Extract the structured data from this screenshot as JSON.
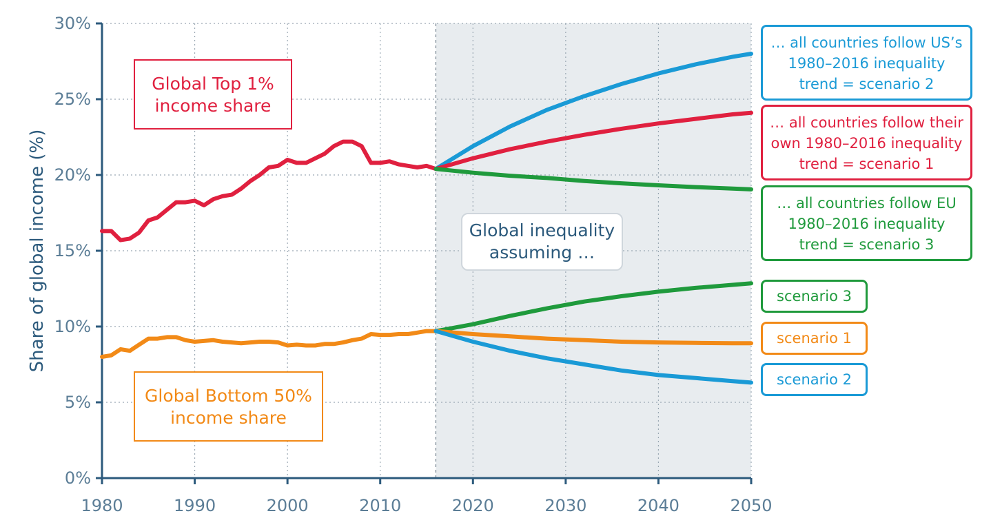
{
  "colors": {
    "top1": "#e0203f",
    "bottom50": "#f28a17",
    "scenario2": "#1a9ad6",
    "scenario3": "#1f9a3c",
    "axis": "#2c5a7c",
    "forecast_shade": "#e8ecef"
  },
  "annotations": {
    "top1_label": [
      "Global Top 1%",
      "income share"
    ],
    "bottom50_label": [
      "Global Bottom 50%",
      "income share"
    ],
    "center_label": [
      "Global inequality",
      "assuming …"
    ],
    "scenario2_box": [
      "… all countries follow US’s",
      "1980–2016 inequality",
      "trend = scenario 2"
    ],
    "scenario1_box": [
      "… all countries follow their",
      "own 1980–2016 inequality",
      "trend = scenario 1"
    ],
    "scenario3_box": [
      "… all countries follow EU",
      "1980–2016 inequality",
      "trend = scenario 3"
    ],
    "bottom_scenario3": "scenario 3",
    "bottom_scenario1": "scenario 1",
    "bottom_scenario2": "scenario 2"
  },
  "chart_data": {
    "type": "line",
    "title": "",
    "xlabel": "",
    "ylabel": "Share of global income (%)",
    "xlim": [
      1980,
      2050
    ],
    "ylim": [
      0,
      30
    ],
    "x_ticks": [
      1980,
      1990,
      2000,
      2010,
      2020,
      2030,
      2040,
      2050
    ],
    "y_ticks": [
      0,
      5,
      10,
      15,
      20,
      25,
      30
    ],
    "y_tick_labels": [
      "0%",
      "5%",
      "10%",
      "15%",
      "20%",
      "25%",
      "30%"
    ],
    "grid": true,
    "forecast_region": [
      2016,
      2050
    ],
    "series": [
      {
        "key": "top1_hist",
        "x": [
          1980,
          1981,
          1982,
          1983,
          1984,
          1985,
          1986,
          1987,
          1988,
          1989,
          1990,
          1991,
          1992,
          1993,
          1994,
          1995,
          1996,
          1997,
          1998,
          1999,
          2000,
          2001,
          2002,
          2003,
          2004,
          2005,
          2006,
          2007,
          2008,
          2009,
          2010,
          2011,
          2012,
          2013,
          2014,
          2015,
          2016
        ],
        "values": [
          16.3,
          16.3,
          15.7,
          15.8,
          16.2,
          17.0,
          17.2,
          17.7,
          18.2,
          18.2,
          18.3,
          18.0,
          18.4,
          18.6,
          18.7,
          19.1,
          19.6,
          20.0,
          20.5,
          20.6,
          21.0,
          20.8,
          20.8,
          21.1,
          21.4,
          21.9,
          22.2,
          22.2,
          21.9,
          20.8,
          20.8,
          20.9,
          20.7,
          20.6,
          20.5,
          20.6,
          20.4
        ]
      },
      {
        "key": "bottom50_hist",
        "x": [
          1980,
          1981,
          1982,
          1983,
          1984,
          1985,
          1986,
          1987,
          1988,
          1989,
          1990,
          1991,
          1992,
          1993,
          1994,
          1995,
          1996,
          1997,
          1998,
          1999,
          2000,
          2001,
          2002,
          2003,
          2004,
          2005,
          2006,
          2007,
          2008,
          2009,
          2010,
          2011,
          2012,
          2013,
          2014,
          2015,
          2016
        ],
        "values": [
          8.0,
          8.1,
          8.5,
          8.4,
          8.8,
          9.2,
          9.2,
          9.3,
          9.3,
          9.1,
          9.0,
          9.05,
          9.1,
          9.0,
          8.95,
          8.9,
          8.95,
          9.0,
          9.0,
          8.95,
          8.75,
          8.8,
          8.75,
          8.75,
          8.85,
          8.85,
          8.95,
          9.1,
          9.2,
          9.5,
          9.45,
          9.45,
          9.5,
          9.5,
          9.6,
          9.7,
          9.7
        ]
      },
      {
        "key": "top1_scenario2",
        "x": [
          2016,
          2020,
          2024,
          2028,
          2032,
          2036,
          2040,
          2044,
          2048,
          2050
        ],
        "values": [
          20.4,
          21.9,
          23.2,
          24.3,
          25.2,
          26.0,
          26.7,
          27.3,
          27.8,
          28.0
        ]
      },
      {
        "key": "top1_scenario1",
        "x": [
          2016,
          2020,
          2024,
          2028,
          2032,
          2036,
          2040,
          2044,
          2048,
          2050
        ],
        "values": [
          20.4,
          21.1,
          21.7,
          22.2,
          22.65,
          23.05,
          23.4,
          23.7,
          24.0,
          24.1
        ]
      },
      {
        "key": "top1_scenario3",
        "x": [
          2016,
          2020,
          2024,
          2028,
          2032,
          2036,
          2040,
          2044,
          2048,
          2050
        ],
        "values": [
          20.4,
          20.15,
          19.95,
          19.8,
          19.6,
          19.45,
          19.32,
          19.2,
          19.1,
          19.05
        ]
      },
      {
        "key": "bottom50_scenario3",
        "x": [
          2016,
          2020,
          2024,
          2028,
          2032,
          2036,
          2040,
          2044,
          2048,
          2050
        ],
        "values": [
          9.7,
          10.15,
          10.7,
          11.2,
          11.65,
          12.0,
          12.3,
          12.55,
          12.75,
          12.85
        ]
      },
      {
        "key": "bottom50_scenario1",
        "x": [
          2016,
          2020,
          2024,
          2028,
          2032,
          2036,
          2040,
          2044,
          2048,
          2050
        ],
        "values": [
          9.7,
          9.5,
          9.35,
          9.2,
          9.1,
          9.0,
          8.95,
          8.92,
          8.9,
          8.9
        ]
      },
      {
        "key": "bottom50_scenario2",
        "x": [
          2016,
          2020,
          2024,
          2028,
          2032,
          2036,
          2040,
          2044,
          2048,
          2050
        ],
        "values": [
          9.7,
          9.0,
          8.4,
          7.9,
          7.5,
          7.1,
          6.8,
          6.6,
          6.4,
          6.3
        ]
      }
    ]
  }
}
